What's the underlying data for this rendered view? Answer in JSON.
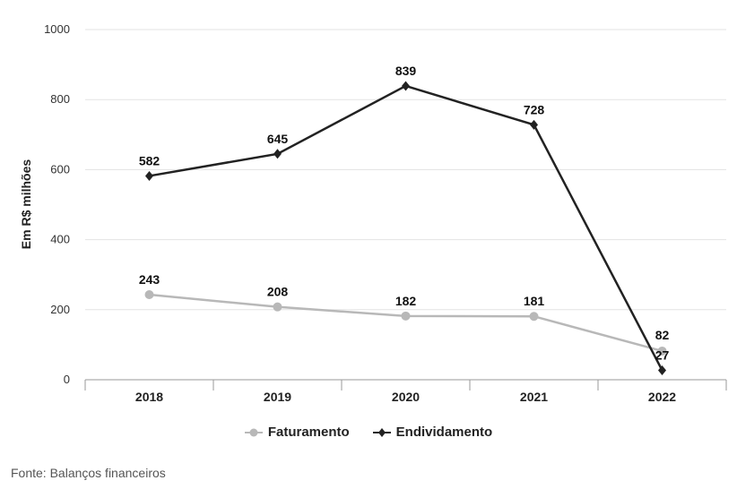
{
  "chart_data": {
    "type": "line",
    "categories": [
      "2018",
      "2019",
      "2020",
      "2021",
      "2022"
    ],
    "series": [
      {
        "name": "Faturamento",
        "values": [
          243,
          208,
          182,
          181,
          82
        ],
        "color": "#b8b8b8",
        "marker": "circle"
      },
      {
        "name": "Endividamento",
        "values": [
          582,
          645,
          839,
          728,
          27
        ],
        "color": "#222222",
        "marker": "diamond"
      }
    ],
    "ylabel": "Em R$ milhões",
    "xlabel": "",
    "ylim": [
      0,
      1000
    ],
    "yticks": [
      0,
      200,
      400,
      600,
      800,
      1000
    ],
    "grid": true,
    "legend_position": "bottom"
  },
  "source": "Fonte: Balanços financeiros"
}
